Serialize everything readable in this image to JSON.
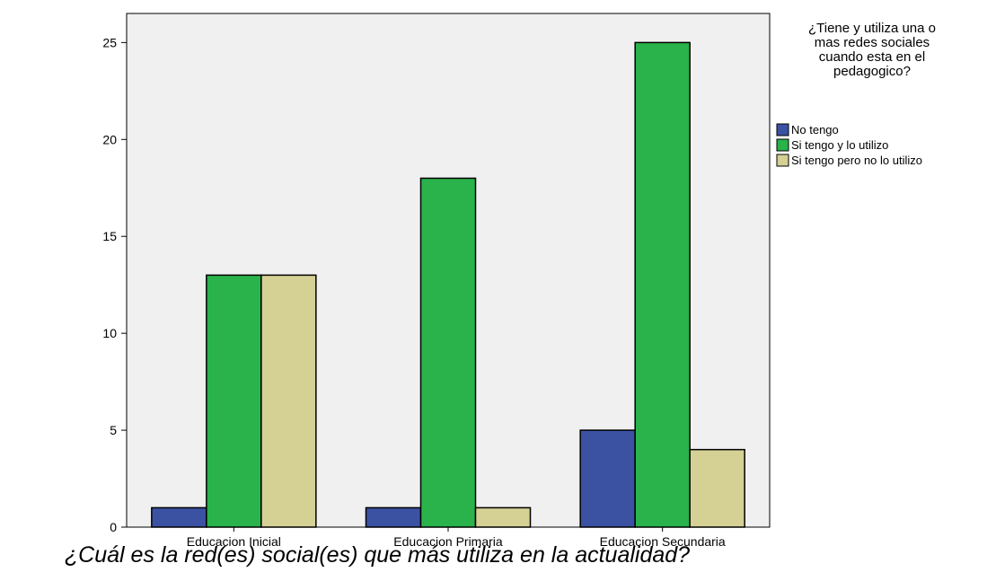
{
  "chart_data": {
    "type": "bar",
    "title": "",
    "xlabel": "¿Cuál es la red(es) social(es) que más utiliza en la actualidad?",
    "ylabel": "",
    "categories": [
      "Educacion Inicial",
      "Educacion Primaria",
      "Educacion Secundaria"
    ],
    "series": [
      {
        "name": "No tengo",
        "values": [
          1,
          1,
          5
        ],
        "color": "#3b52a3"
      },
      {
        "name": "Si tengo y lo utilizo",
        "values": [
          13,
          18,
          25
        ],
        "color": "#29b34a"
      },
      {
        "name": "Si tengo pero no lo utilizo",
        "values": [
          13,
          1,
          4
        ],
        "color": "#d5d094"
      }
    ],
    "ylim": [
      0,
      26.5
    ],
    "yticks": [
      0,
      5,
      10,
      15,
      20,
      25
    ],
    "grid": false,
    "plot_background": "#f0f0f0",
    "legend": {
      "title_lines": [
        "¿Tiene y utiliza una o",
        "mas redes sociales",
        "cuando esta en el",
        "pedagogico?"
      ],
      "placement": "right"
    }
  }
}
